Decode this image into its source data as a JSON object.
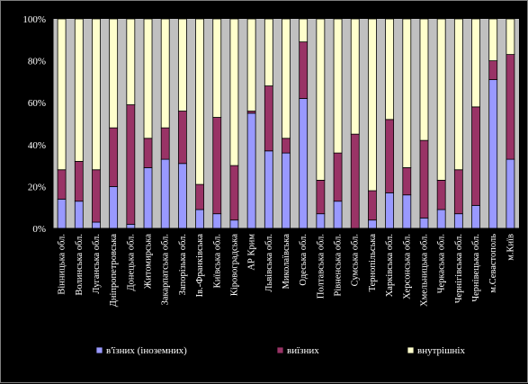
{
  "chart_data": {
    "type": "bar",
    "stacked": true,
    "percent": true,
    "ylim": [
      0,
      100
    ],
    "yticks": [
      "0%",
      "20%",
      "40%",
      "60%",
      "80%",
      "100%"
    ],
    "grid": false,
    "legend_position": "bottom",
    "colors": {
      "plot_bg": "#c0c0c0",
      "inbound_foreign": "#9999ff",
      "outbound": "#993366",
      "domestic": "#ffffcc"
    },
    "categories": [
      "Вінницька обл.",
      "Волинська обл.",
      "Луганська обл.",
      "Дніпропетровська",
      "Донецька обл.",
      "Житомирська",
      "Закарпатська обл.",
      "Запорізька обл.",
      "Ів.-Франківська",
      "Київська обл.",
      "Кіровоградська",
      "АР Крим",
      "Львівська обл.",
      "Миколаївська",
      "Одеська обл.",
      "Полтавська обл.",
      "Рівненська обл.",
      "Сумська обл.",
      "Тернопільська",
      "Харківська обл.",
      "Херсонська обл.",
      "Хмельницька обл.",
      "Черкаська обл.",
      "Чернігівська обл.",
      "Чернівецька обл.",
      "м.Севастополь",
      "м.Київ"
    ],
    "series": [
      {
        "name": "в'їзних (іноземних)",
        "color": "#9999ff",
        "values": [
          14,
          13,
          3,
          20,
          2,
          29,
          33,
          31,
          9,
          7,
          4,
          55,
          37,
          36,
          62,
          7,
          13,
          0,
          4,
          17,
          16,
          5,
          9,
          7,
          11,
          71,
          33
        ]
      },
      {
        "name": "виїзних",
        "color": "#993366",
        "values": [
          14,
          19,
          25,
          28,
          57,
          14,
          15,
          25,
          12,
          46,
          26,
          1,
          31,
          7,
          27,
          16,
          23,
          45,
          14,
          35,
          13,
          37,
          14,
          21,
          47,
          9,
          50
        ]
      },
      {
        "name": "внутрішніх",
        "color": "#ffffcc",
        "values": [
          72,
          68,
          72,
          52,
          41,
          57,
          52,
          44,
          79,
          47,
          70,
          44,
          32,
          57,
          11,
          77,
          64,
          55,
          82,
          48,
          71,
          58,
          77,
          72,
          42,
          20,
          17
        ]
      }
    ]
  }
}
